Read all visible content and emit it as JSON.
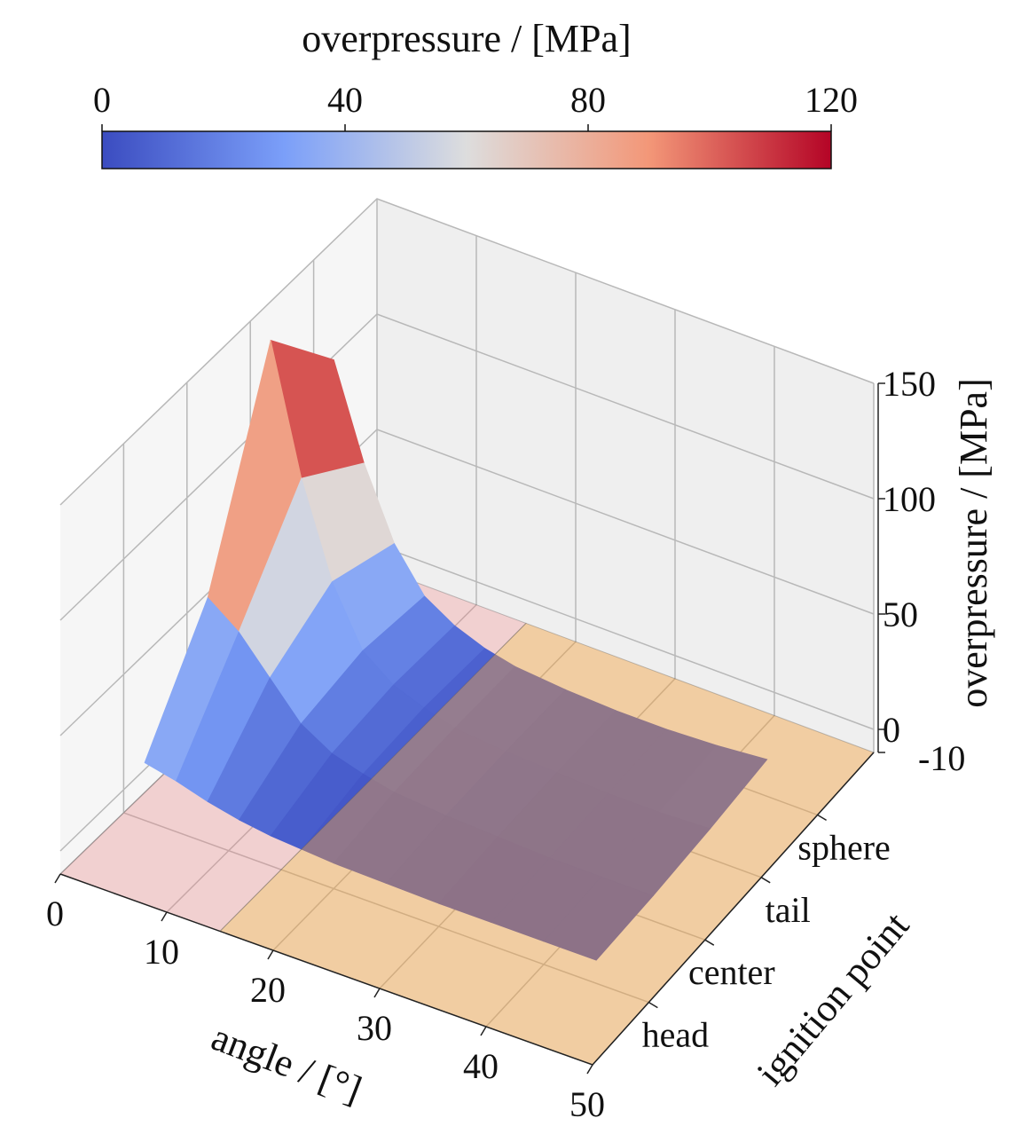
{
  "chart_data": {
    "type": "surface3d",
    "colorbar": {
      "title": "overpressure / [MPa]",
      "range": [
        0,
        120
      ],
      "ticks": [
        "0",
        "40",
        "80",
        "120"
      ],
      "colormap": "coolwarm"
    },
    "xlabel": "angle / [°]",
    "ylabel": "ignition point",
    "zlabel": "overpressure / [MPa]",
    "xlim": [
      0,
      50
    ],
    "ylim": [
      -1,
      4
    ],
    "zlim": [
      -10,
      150
    ],
    "xticks": [
      "0",
      "10",
      "20",
      "30",
      "40",
      "50"
    ],
    "yticks": [
      "head",
      "center",
      "tail",
      "sphere"
    ],
    "zticks": [
      "-10",
      "0",
      "50",
      "100",
      "150"
    ],
    "floor_regions": [
      {
        "from": 0,
        "to": 15,
        "color": "#f08080"
      },
      {
        "from": 15,
        "to": 50,
        "color": "#f0a040"
      }
    ],
    "surface": {
      "angles": [
        2,
        5,
        8,
        11,
        14,
        17,
        20,
        25,
        30,
        35,
        40,
        45
      ],
      "ignition_points": [
        "head",
        "center",
        "tail",
        "sphere"
      ],
      "z": [
        [
          15,
          12,
          8,
          5,
          3,
          2,
          1,
          0.5,
          0,
          0,
          0,
          0
        ],
        [
          60,
          50,
          35,
          20,
          12,
          8,
          5,
          3,
          2,
          1,
          1,
          1
        ],
        [
          145,
          90,
          50,
          25,
          15,
          10,
          6,
          4,
          3,
          2,
          2,
          3
        ],
        [
          110,
          70,
          40,
          22,
          14,
          9,
          6,
          4,
          3,
          3,
          4,
          6
        ]
      ]
    }
  }
}
